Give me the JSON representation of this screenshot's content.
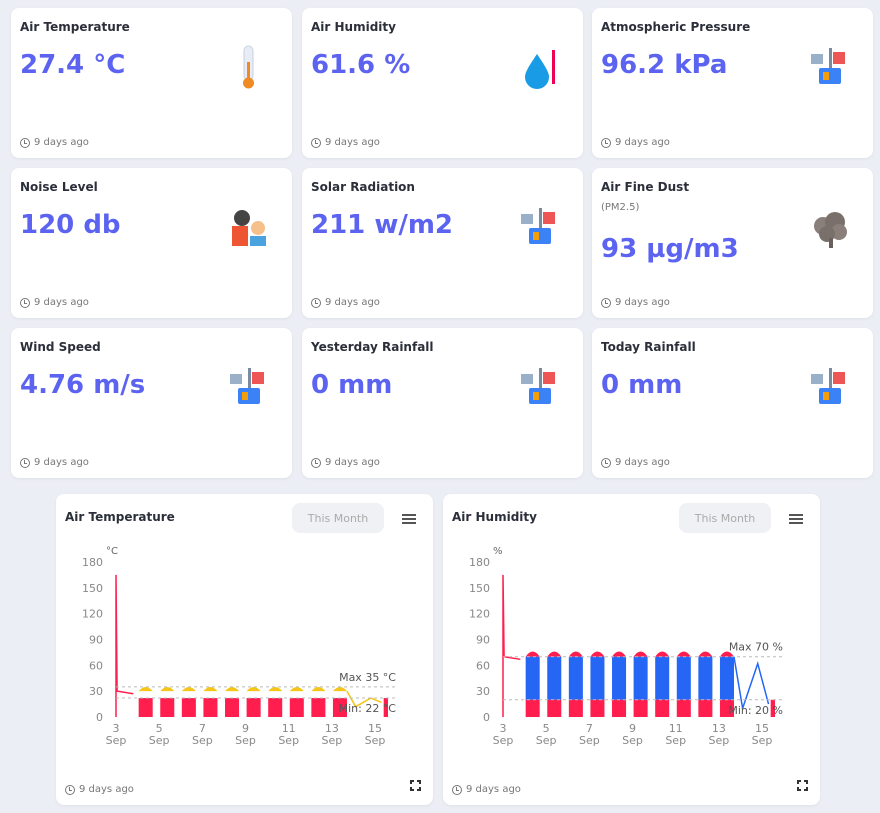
{
  "cards": [
    {
      "title": "Air Temperature",
      "value": "27.4 °C",
      "time": "9 days ago",
      "icon": "thermometer"
    },
    {
      "title": "Air Humidity",
      "value": "61.6 %",
      "time": "9 days ago",
      "icon": "water-drop"
    },
    {
      "title": "Atmospheric Pressure",
      "value": "96.2 kPa",
      "time": "9 days ago",
      "icon": "weather-station"
    },
    {
      "title": "Noise Level",
      "value": "120 db",
      "time": "9 days ago",
      "icon": "noise"
    },
    {
      "title": "Solar Radiation",
      "value": "211 w/m2",
      "time": "9 days ago",
      "icon": "weather-station"
    },
    {
      "title": "Air Fine Dust",
      "subtitle": "(PM2.5)",
      "value": "93 µg/m3",
      "time": "9 days ago",
      "icon": "dust-cloud"
    },
    {
      "title": "Wind Speed",
      "value": "4.76 m/s",
      "time": "9 days ago",
      "icon": "weather-station"
    },
    {
      "title": "Yesterday Rainfall",
      "value": "0 mm",
      "time": "9 days ago",
      "icon": "weather-station"
    },
    {
      "title": "Today Rainfall",
      "value": "0 mm",
      "time": "9 days ago",
      "icon": "weather-station"
    }
  ],
  "charts": [
    {
      "title": "Air Temperature",
      "range_button": "This Month",
      "time": "9 days ago"
    },
    {
      "title": "Air Humidity",
      "range_button": "This Month",
      "time": "9 days ago"
    }
  ],
  "chart_data": [
    {
      "type": "area",
      "title": "Air Temperature",
      "unit": "°C",
      "ylim": [
        0,
        180
      ],
      "yticks": [
        "0",
        "30",
        "60",
        "90",
        "120",
        "150",
        "180"
      ],
      "xticks": [
        "3 Sep",
        "5 Sep",
        "7 Sep",
        "9 Sep",
        "11 Sep",
        "13 Sep",
        "15 Sep"
      ],
      "x_range": [
        3,
        15.6
      ],
      "upper": {
        "color": "#f5c518",
        "daily_peak": 35
      },
      "lower": {
        "color": "#ff1e4e",
        "spike": 165,
        "level": 22
      },
      "annotations": {
        "max": {
          "label": "Max  35 °C",
          "value": 35
        },
        "min": {
          "label": "Min: 22 °C",
          "value": 22
        }
      }
    },
    {
      "type": "area",
      "title": "Air Humidity",
      "unit": "%",
      "ylim": [
        0,
        180
      ],
      "yticks": [
        "0",
        "30",
        "60",
        "90",
        "120",
        "150",
        "180"
      ],
      "xticks": [
        "3 Sep",
        "5 Sep",
        "7 Sep",
        "9 Sep",
        "11 Sep",
        "13 Sep",
        "15 Sep"
      ],
      "x_range": [
        3,
        15.6
      ],
      "upper": {
        "color": "#ff1e4e",
        "daily_peak": 82
      },
      "middle": {
        "color": "#2566f5",
        "level": 70
      },
      "lower": {
        "color": "#ff1e4e",
        "spike": 165,
        "level": 20
      },
      "annotations": {
        "max": {
          "label": "Max  70 %",
          "value": 70
        },
        "min": {
          "label": "Min: 20 %",
          "value": 20
        }
      }
    }
  ]
}
